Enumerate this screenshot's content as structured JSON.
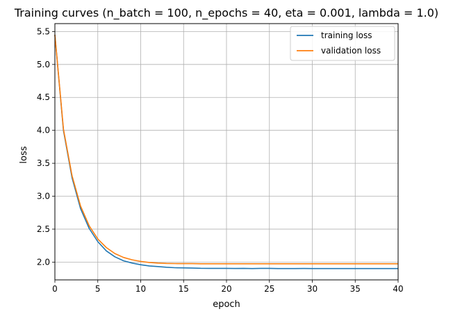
{
  "chart_data": {
    "type": "line",
    "title": "Training curves (n_batch = 100, n_epochs = 40, eta = 0.001, lambda = 1.0)",
    "xlabel": "epoch",
    "ylabel": "loss",
    "xlim": [
      0,
      40
    ],
    "ylim": [
      1.73,
      5.62
    ],
    "xticks": [
      0,
      5,
      10,
      15,
      20,
      25,
      30,
      35,
      40
    ],
    "xtick_labels": [
      "0",
      "5",
      "10",
      "15",
      "20",
      "25",
      "30",
      "35",
      "40"
    ],
    "yticks": [
      2.0,
      2.5,
      3.0,
      3.5,
      4.0,
      4.5,
      5.0,
      5.5
    ],
    "ytick_labels": [
      "2.0",
      "2.5",
      "3.0",
      "3.5",
      "4.0",
      "4.5",
      "5.0",
      "5.5"
    ],
    "grid": true,
    "legend_position": "top-right",
    "x": [
      0,
      1,
      2,
      3,
      4,
      5,
      6,
      7,
      8,
      9,
      10,
      11,
      12,
      13,
      14,
      15,
      16,
      17,
      18,
      19,
      20,
      21,
      22,
      23,
      24,
      25,
      26,
      27,
      28,
      29,
      30,
      31,
      32,
      33,
      34,
      35,
      36,
      37,
      38,
      39,
      40
    ],
    "series": [
      {
        "name": "training loss",
        "color": "#1f77b4",
        "values": [
          5.45,
          4.0,
          3.28,
          2.81,
          2.51,
          2.31,
          2.17,
          2.08,
          2.02,
          1.985,
          1.96,
          1.942,
          1.932,
          1.922,
          1.915,
          1.912,
          1.91,
          1.906,
          1.905,
          1.905,
          1.905,
          1.903,
          1.905,
          1.902,
          1.905,
          1.905,
          1.902,
          1.902,
          1.902,
          1.903,
          1.902,
          1.902,
          1.902,
          1.902,
          1.902,
          1.902,
          1.902,
          1.902,
          1.902,
          1.902,
          1.902
        ]
      },
      {
        "name": "validation loss",
        "color": "#ff7f0e",
        "values": [
          5.45,
          4.02,
          3.31,
          2.85,
          2.55,
          2.35,
          2.22,
          2.13,
          2.07,
          2.035,
          2.01,
          1.995,
          1.985,
          1.98,
          1.978,
          1.977,
          1.977,
          1.975,
          1.975,
          1.975,
          1.975,
          1.975,
          1.975,
          1.975,
          1.975,
          1.975,
          1.975,
          1.975,
          1.975,
          1.975,
          1.975,
          1.975,
          1.975,
          1.975,
          1.975,
          1.975,
          1.975,
          1.975,
          1.975,
          1.975,
          1.975
        ]
      }
    ]
  }
}
